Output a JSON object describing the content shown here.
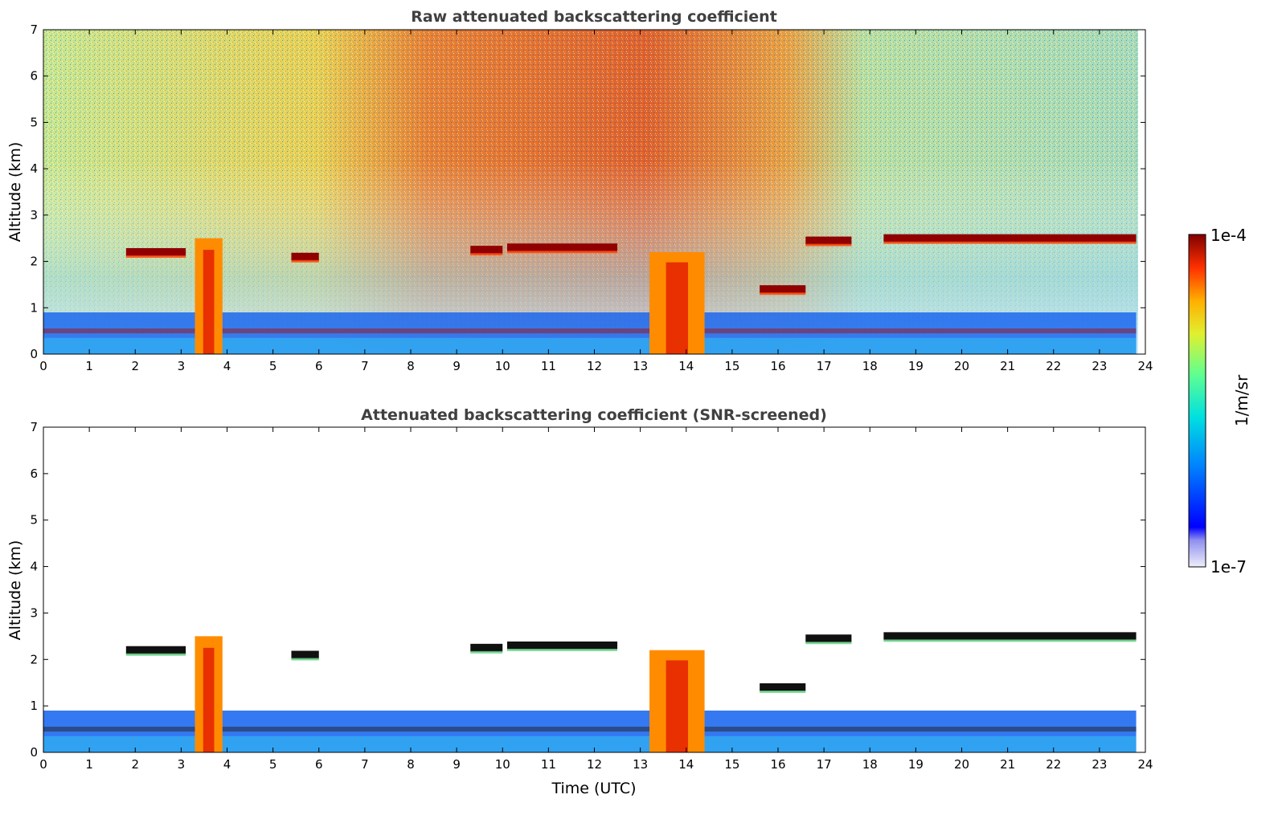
{
  "chart_data": [
    {
      "type": "heatmap",
      "title": "Raw attenuated backscattering coefficient",
      "xlabel": "",
      "ylabel": "Altitude (km)",
      "xlim": [
        0,
        24
      ],
      "ylim": [
        0,
        7
      ],
      "xticks": [
        "0",
        "1",
        "2",
        "3",
        "4",
        "5",
        "6",
        "7",
        "8",
        "9",
        "10",
        "11",
        "12",
        "13",
        "14",
        "15",
        "16",
        "17",
        "18",
        "19",
        "20",
        "21",
        "22",
        "23",
        "24"
      ],
      "yticks": [
        "0",
        "1",
        "2",
        "3",
        "4",
        "5",
        "6",
        "7"
      ],
      "features": [
        {
          "label": "cloud layer",
          "time": [
            1.8,
            3.1
          ],
          "altitude": 2.2
        },
        {
          "label": "cloud layer",
          "time": [
            5.4,
            6.0
          ],
          "altitude": 2.1
        },
        {
          "label": "cloud layer",
          "time": [
            9.3,
            10.0
          ],
          "altitude": 2.25
        },
        {
          "label": "cloud layer",
          "time": [
            10.1,
            12.5
          ],
          "altitude": 2.3
        },
        {
          "label": "cloud layer",
          "time": [
            15.6,
            16.6
          ],
          "altitude": 1.4
        },
        {
          "label": "cloud layer",
          "time": [
            16.6,
            17.6
          ],
          "altitude": 2.45
        },
        {
          "label": "cloud layer",
          "time": [
            18.3,
            23.8
          ],
          "altitude": 2.5
        },
        {
          "label": "boundary layer",
          "time": [
            0,
            23.8
          ],
          "altitude": 0.5
        },
        {
          "label": "convective plume",
          "time": [
            3.3,
            3.9
          ],
          "altitude": [
            0,
            2.5
          ]
        },
        {
          "label": "convective plume",
          "time": [
            13.2,
            14.4
          ],
          "altitude": [
            0,
            2.2
          ]
        }
      ]
    },
    {
      "type": "heatmap",
      "title": "Attenuated backscattering coefficient (SNR-screened)",
      "xlabel": "Time (UTC)",
      "ylabel": "Altitude (km)",
      "xlim": [
        0,
        24
      ],
      "ylim": [
        0,
        7
      ],
      "xticks": [
        "0",
        "1",
        "2",
        "3",
        "4",
        "5",
        "6",
        "7",
        "8",
        "9",
        "10",
        "11",
        "12",
        "13",
        "14",
        "15",
        "16",
        "17",
        "18",
        "19",
        "20",
        "21",
        "22",
        "23",
        "24"
      ],
      "yticks": [
        "0",
        "1",
        "2",
        "3",
        "4",
        "5",
        "6",
        "7"
      ]
    }
  ],
  "colorbar": {
    "label": "1/m/sr",
    "max_label": "1e-4",
    "min_label": "1e-7",
    "scale": "log",
    "colors": [
      "#e8e8f8",
      "#0000ff",
      "#0090ff",
      "#00e0e0",
      "#60ff90",
      "#e0f030",
      "#ffb000",
      "#ff3000",
      "#800000"
    ]
  }
}
